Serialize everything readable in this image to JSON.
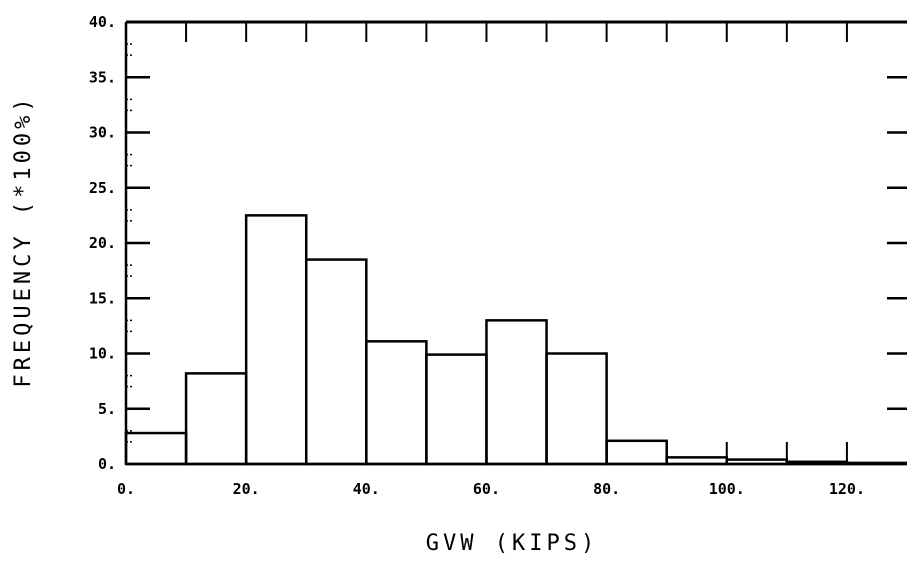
{
  "chart_data": {
    "type": "bar",
    "title": "",
    "xlabel": "GVW (KIPS)",
    "ylabel": "FREQUENCY (*100%)",
    "xlim": [
      0,
      130
    ],
    "ylim": [
      0,
      40
    ],
    "bin_width": 10,
    "bins": [
      0,
      10,
      20,
      30,
      40,
      50,
      60,
      70,
      80,
      90,
      100,
      110,
      120
    ],
    "values": [
      2.8,
      8.2,
      22.5,
      18.5,
      11.1,
      9.9,
      13.0,
      10.0,
      2.1,
      0.6,
      0.4,
      0.2,
      0.1
    ],
    "xticks": [
      "0.",
      "20.",
      "40.",
      "60.",
      "80.",
      "100.",
      "120."
    ],
    "xtick_values": [
      0,
      20,
      40,
      60,
      80,
      100,
      120
    ],
    "yticks": [
      "0.",
      "5.",
      "10.",
      "15.",
      "20.",
      "25.",
      "30.",
      "35.",
      "40."
    ],
    "ytick_values": [
      0,
      5,
      10,
      15,
      20,
      25,
      30,
      35,
      40
    ],
    "grid": false,
    "color": "#000000"
  }
}
